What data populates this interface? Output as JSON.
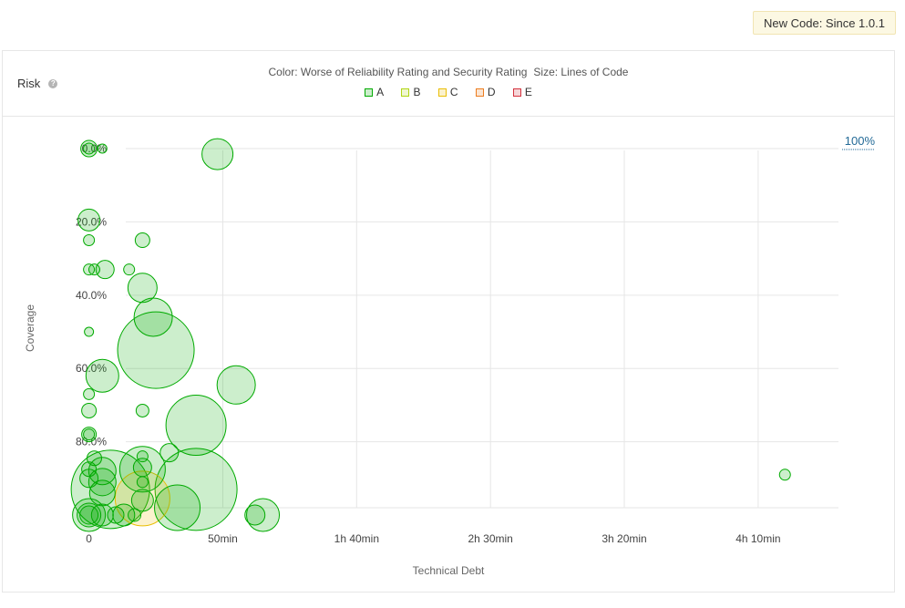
{
  "header": {
    "new_code_label": "New Code: Since 1.0.1"
  },
  "panel": {
    "title": "Risk",
    "help_icon": "question-circle-icon",
    "color_label": "Color: Worse of Reliability Rating and Security Rating",
    "size_label": "Size: Lines of Code",
    "legend": [
      {
        "label": "A",
        "fill": "#b0d513",
        "color": "#00aa00"
      },
      {
        "label": "B",
        "fill": "#b0d513",
        "color": "#b0d513"
      },
      {
        "label": "C",
        "fill": "#eabe06",
        "color": "#eabe06"
      },
      {
        "label": "D",
        "fill": "#ed7d20",
        "color": "#ed7d20"
      },
      {
        "label": "E",
        "fill": "#d4333f",
        "color": "#d4333f"
      }
    ],
    "zoom_label": "100%"
  },
  "chart_data": {
    "type": "scatter",
    "subtype": "bubble",
    "xlabel": "Technical Debt",
    "ylabel": "Coverage",
    "x_unit": "minutes",
    "xlim": [
      -6,
      280
    ],
    "ylim": [
      -2,
      100
    ],
    "x_ticks": [
      {
        "value": 0,
        "label": "0"
      },
      {
        "value": 50,
        "label": "50min"
      },
      {
        "value": 100,
        "label": "1h 40min"
      },
      {
        "value": 150,
        "label": "2h 30min"
      },
      {
        "value": 200,
        "label": "3h 20min"
      },
      {
        "value": 250,
        "label": "4h 10min"
      }
    ],
    "y_ticks": [
      {
        "value": 0,
        "label": "0.0%"
      },
      {
        "value": 20,
        "label": "20.0%"
      },
      {
        "value": 40,
        "label": "40.0%"
      },
      {
        "value": 60,
        "label": "60.0%"
      },
      {
        "value": 80,
        "label": "80.0%"
      }
    ],
    "grid": true,
    "y_reversed": true,
    "colors": {
      "A": {
        "fill": "#00aa00",
        "stroke": "#00aa00"
      },
      "C": {
        "fill": "#eabe06",
        "stroke": "#eabe06"
      }
    },
    "size_range": [
      4,
      58
    ],
    "points": [
      {
        "x": 0,
        "y": 0,
        "size": 9,
        "rating": "A"
      },
      {
        "x": 0,
        "y": 0,
        "size": 6,
        "rating": "A"
      },
      {
        "x": 5,
        "y": 0,
        "size": 5,
        "rating": "A"
      },
      {
        "x": 48,
        "y": 1.5,
        "size": 17,
        "rating": "A"
      },
      {
        "x": 0,
        "y": 19.5,
        "size": 12,
        "rating": "A"
      },
      {
        "x": 0,
        "y": 25,
        "size": 6,
        "rating": "A"
      },
      {
        "x": 20,
        "y": 25,
        "size": 8,
        "rating": "A"
      },
      {
        "x": 0,
        "y": 33,
        "size": 6,
        "rating": "A"
      },
      {
        "x": 2,
        "y": 33,
        "size": 6,
        "rating": "A"
      },
      {
        "x": 6,
        "y": 33,
        "size": 10,
        "rating": "A"
      },
      {
        "x": 15,
        "y": 33,
        "size": 6,
        "rating": "A"
      },
      {
        "x": 20,
        "y": 38,
        "size": 16,
        "rating": "A"
      },
      {
        "x": 24,
        "y": 46,
        "size": 21,
        "rating": "A"
      },
      {
        "x": 0,
        "y": 50,
        "size": 5,
        "rating": "A"
      },
      {
        "x": 25,
        "y": 55,
        "size": 42,
        "rating": "A"
      },
      {
        "x": 5,
        "y": 62,
        "size": 18,
        "rating": "A"
      },
      {
        "x": 55,
        "y": 64.5,
        "size": 21,
        "rating": "A"
      },
      {
        "x": 0,
        "y": 67,
        "size": 6,
        "rating": "A"
      },
      {
        "x": 0,
        "y": 71.5,
        "size": 8,
        "rating": "A"
      },
      {
        "x": 20,
        "y": 71.5,
        "size": 7,
        "rating": "A"
      },
      {
        "x": 40,
        "y": 75.5,
        "size": 33,
        "rating": "A"
      },
      {
        "x": 0,
        "y": 78,
        "size": 8,
        "rating": "A"
      },
      {
        "x": 0,
        "y": 78,
        "size": 6,
        "rating": "A"
      },
      {
        "x": 30,
        "y": 83,
        "size": 10,
        "rating": "A"
      },
      {
        "x": 2,
        "y": 84.5,
        "size": 8,
        "rating": "A"
      },
      {
        "x": 20,
        "y": 84,
        "size": 6,
        "rating": "A"
      },
      {
        "x": 0,
        "y": 87.5,
        "size": 8,
        "rating": "A"
      },
      {
        "x": 5,
        "y": 88,
        "size": 15,
        "rating": "A"
      },
      {
        "x": 20,
        "y": 87.5,
        "size": 25,
        "rating": "A"
      },
      {
        "x": 20,
        "y": 87,
        "size": 10,
        "rating": "A"
      },
      {
        "x": 260,
        "y": 89,
        "size": 6,
        "rating": "A"
      },
      {
        "x": 0,
        "y": 90,
        "size": 10,
        "rating": "A"
      },
      {
        "x": 5,
        "y": 91,
        "size": 15,
        "rating": "A"
      },
      {
        "x": 20,
        "y": 91,
        "size": 6,
        "rating": "A"
      },
      {
        "x": 8,
        "y": 93,
        "size": 43,
        "rating": "A"
      },
      {
        "x": 40,
        "y": 93,
        "size": 45,
        "rating": "A"
      },
      {
        "x": 5,
        "y": 94,
        "size": 14,
        "rating": "A"
      },
      {
        "x": 20,
        "y": 95.5,
        "size": 30,
        "rating": "C"
      },
      {
        "x": 20,
        "y": 96,
        "size": 12,
        "rating": "A"
      },
      {
        "x": 33,
        "y": 98,
        "size": 25,
        "rating": "A"
      },
      {
        "x": 0,
        "y": 100,
        "size": 18,
        "rating": "A"
      },
      {
        "x": 0,
        "y": 100,
        "size": 13,
        "rating": "A"
      },
      {
        "x": 0,
        "y": 100,
        "size": 10,
        "rating": "A"
      },
      {
        "x": 5,
        "y": 100,
        "size": 12,
        "rating": "A"
      },
      {
        "x": 10,
        "y": 100,
        "size": 9,
        "rating": "A"
      },
      {
        "x": 13,
        "y": 100,
        "size": 12,
        "rating": "A"
      },
      {
        "x": 17,
        "y": 100,
        "size": 7,
        "rating": "A"
      },
      {
        "x": 62,
        "y": 100,
        "size": 11,
        "rating": "A"
      },
      {
        "x": 65,
        "y": 100,
        "size": 18,
        "rating": "A"
      }
    ]
  }
}
